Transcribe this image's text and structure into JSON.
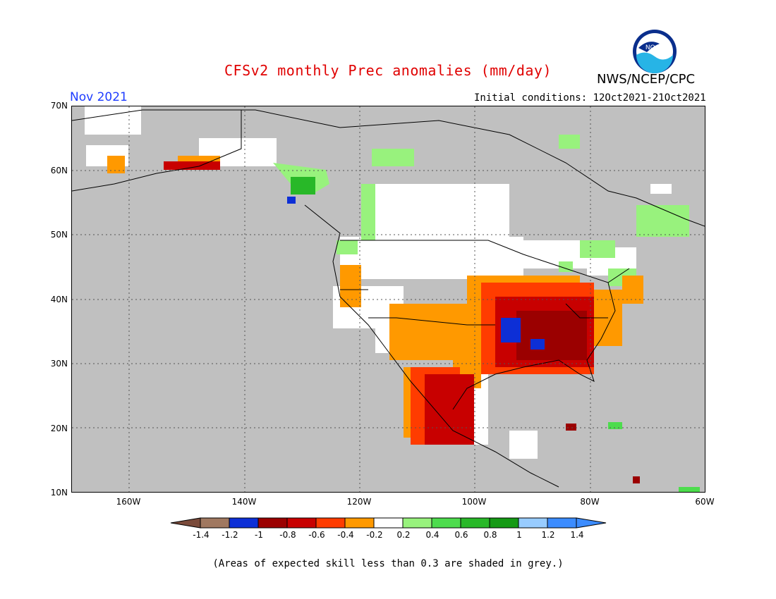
{
  "title": "CFSv2 monthly Prec anomalies (mm/day)",
  "org": "NWS/NCEP/CPC",
  "month": "Nov 2021",
  "initial_conditions": "Initial conditions: 12Oct2021-21Oct2021",
  "logo_text": "NOAA",
  "lat_labels": [
    "70N",
    "60N",
    "50N",
    "40N",
    "30N",
    "20N",
    "10N"
  ],
  "lon_labels": [
    "160W",
    "140W",
    "120W",
    "100W",
    "80W",
    "60W"
  ],
  "colorbar": {
    "colors": [
      "#7a4a3a",
      "#a07860",
      "#0d2fd6",
      "#9b0000",
      "#c80000",
      "#ff3c00",
      "#ff9900",
      "#ffffff",
      "#98f27d",
      "#4ddc4d",
      "#28b828",
      "#159a15",
      "#98ccff",
      "#3c8cff",
      "#3c8cff"
    ],
    "ticks": [
      "-1.4",
      "-1.2",
      "-1",
      "-0.8",
      "-0.6",
      "-0.4",
      "-0.2",
      "0.2",
      "0.4",
      "0.6",
      "0.8",
      "1",
      "1.2",
      "1.4"
    ]
  },
  "note": "(Areas of expected skill less than 0.3 are shaded in grey.)",
  "map": {
    "extent": {
      "lon_min": -170,
      "lon_max": -60,
      "lat_min": 10,
      "lat_max": 70
    },
    "background": "#c0c0c0",
    "land_outline": "#000000"
  }
}
